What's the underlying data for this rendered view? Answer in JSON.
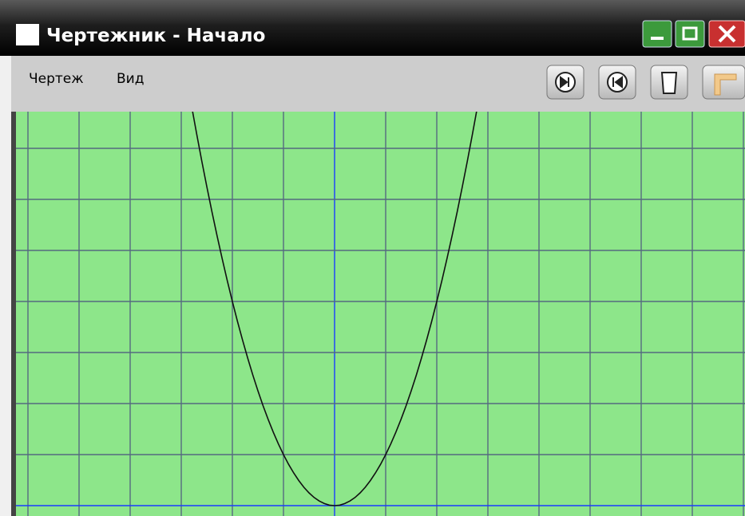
{
  "window": {
    "title": "Чертежник - Начало"
  },
  "menu": [
    "Чертеж",
    "Вид"
  ]
}
